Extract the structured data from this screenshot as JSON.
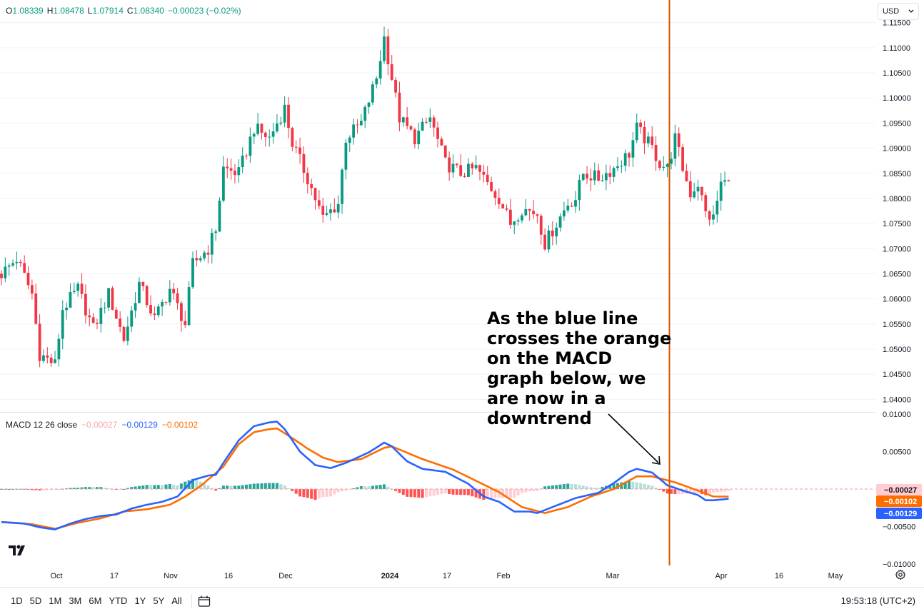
{
  "ohlc": {
    "o_label": "O",
    "o": "1.08339",
    "h_label": "H",
    "h": "1.08478",
    "l_label": "L",
    "l": "1.07914",
    "c_label": "C",
    "c": "1.08340",
    "change": "−0.00023 (−0.02%)"
  },
  "currency": {
    "value": "USD"
  },
  "macd_legend": {
    "name": "MACD 12 26 close",
    "hist": "−0.00027",
    "macd": "−0.00129",
    "signal": "−0.00102"
  },
  "annotation": "As the blue line crosses the orange on the MACD graph below, we are now in a downtrend",
  "toolbar": {
    "timeframes": [
      "1D",
      "5D",
      "1M",
      "3M",
      "6M",
      "YTD",
      "1Y",
      "5Y",
      "All"
    ],
    "clock": "19:53:18 (UTC+2)"
  },
  "colors": {
    "up": "#089981",
    "down": "#f23645",
    "hist_up_strong": "#26a69a",
    "hist_up_weak": "#b2dfdb",
    "hist_down_strong": "#ff5252",
    "hist_down_weak": "#ffcdd2",
    "macd_line": "#2962ff",
    "signal_line": "#ff6d00",
    "vline": "#d35400"
  },
  "icons": [
    "settings-icon",
    "calendar-icon",
    "chevron-down-icon",
    "tradingview-logo"
  ],
  "chart_data": [
    {
      "type": "candlestick",
      "title": "",
      "y_axis_ticks": [
        "1.11500",
        "1.11000",
        "1.10500",
        "1.10000",
        "1.09500",
        "1.09000",
        "1.08500",
        "1.08000",
        "1.07500",
        "1.07000",
        "1.06500",
        "1.06000",
        "1.05500",
        "1.05000",
        "1.04500",
        "1.04000"
      ],
      "x_axis_ticks": [
        "Oct",
        "17",
        "Nov",
        "16",
        "Dec",
        "2024",
        "17",
        "Feb",
        "Mar",
        "Apr",
        "16",
        "May"
      ],
      "ylim": [
        1.0375,
        1.1195
      ],
      "waypoints_close": [
        [
          0,
          1.065
        ],
        [
          4,
          1.068
        ],
        [
          8,
          1.061
        ],
        [
          10,
          1.049
        ],
        [
          14,
          1.047
        ],
        [
          16,
          1.058
        ],
        [
          20,
          1.062
        ],
        [
          24,
          1.054
        ],
        [
          28,
          1.061
        ],
        [
          32,
          1.052
        ],
        [
          36,
          1.063
        ],
        [
          40,
          1.056
        ],
        [
          44,
          1.062
        ],
        [
          48,
          1.055
        ],
        [
          50,
          1.067
        ],
        [
          54,
          1.07
        ],
        [
          56,
          1.074
        ],
        [
          58,
          1.086
        ],
        [
          62,
          1.085
        ],
        [
          66,
          1.094
        ],
        [
          70,
          1.092
        ],
        [
          74,
          1.098
        ],
        [
          76,
          1.091
        ],
        [
          80,
          1.084
        ],
        [
          84,
          1.076
        ],
        [
          88,
          1.079
        ],
        [
          90,
          1.092
        ],
        [
          94,
          1.095
        ],
        [
          98,
          1.104
        ],
        [
          100,
          1.112
        ],
        [
          104,
          1.096
        ],
        [
          108,
          1.092
        ],
        [
          112,
          1.096
        ],
        [
          116,
          1.087
        ],
        [
          120,
          1.085
        ],
        [
          124,
          1.086
        ],
        [
          128,
          1.082
        ],
        [
          130,
          1.08
        ],
        [
          133,
          1.075
        ],
        [
          136,
          1.078
        ],
        [
          140,
          1.077
        ],
        [
          142,
          1.071
        ],
        [
          145,
          1.075
        ],
        [
          148,
          1.079
        ],
        [
          150,
          1.08
        ],
        [
          152,
          1.085
        ],
        [
          156,
          1.084
        ],
        [
          160,
          1.086
        ],
        [
          164,
          1.089
        ],
        [
          166,
          1.094
        ],
        [
          170,
          1.09
        ],
        [
          172,
          1.087
        ],
        [
          174,
          1.086
        ],
        [
          176,
          1.092
        ],
        [
          178,
          1.086
        ],
        [
          180,
          1.081
        ],
        [
          182,
          1.083
        ],
        [
          184,
          1.077
        ],
        [
          186,
          1.076
        ],
        [
          188,
          1.083
        ],
        [
          190,
          1.083
        ]
      ],
      "candle_count": 191
    },
    {
      "type": "line+histogram",
      "title": "MACD 12 26 close",
      "y_axis_ticks": [
        "0.01000",
        "0.00500",
        "−0.00500",
        "−0.01000"
      ],
      "ylim": [
        -0.0102,
        0.0102
      ],
      "macd_waypoints": [
        [
          0,
          -0.0044
        ],
        [
          6,
          -0.0046
        ],
        [
          10,
          -0.0051
        ],
        [
          14,
          -0.0054
        ],
        [
          18,
          -0.0046
        ],
        [
          22,
          -0.004
        ],
        [
          26,
          -0.0036
        ],
        [
          30,
          -0.0034
        ],
        [
          34,
          -0.0026
        ],
        [
          38,
          -0.0021
        ],
        [
          42,
          -0.0017
        ],
        [
          46,
          -0.001
        ],
        [
          50,
          0.0012
        ],
        [
          54,
          0.0018
        ],
        [
          56,
          0.0019
        ],
        [
          58,
          0.0035
        ],
        [
          62,
          0.0065
        ],
        [
          66,
          0.0084
        ],
        [
          70,
          0.0089
        ],
        [
          72,
          0.009
        ],
        [
          74,
          0.008
        ],
        [
          78,
          0.005
        ],
        [
          82,
          0.0032
        ],
        [
          86,
          0.0028
        ],
        [
          90,
          0.0035
        ],
        [
          96,
          0.0049
        ],
        [
          100,
          0.0062
        ],
        [
          102,
          0.0057
        ],
        [
          106,
          0.0037
        ],
        [
          110,
          0.0027
        ],
        [
          116,
          0.0023
        ],
        [
          122,
          0.0007
        ],
        [
          126,
          -0.001
        ],
        [
          130,
          -0.0017
        ],
        [
          134,
          -0.003
        ],
        [
          138,
          -0.003
        ],
        [
          140,
          -0.0032
        ],
        [
          144,
          -0.0024
        ],
        [
          150,
          -0.0012
        ],
        [
          156,
          -0.0005
        ],
        [
          160,
          0.0008
        ],
        [
          164,
          0.0023
        ],
        [
          166,
          0.0027
        ],
        [
          170,
          0.0022
        ],
        [
          174,
          0.0005
        ],
        [
          178,
          -0.0002
        ],
        [
          182,
          -0.0008
        ],
        [
          184,
          -0.0015
        ],
        [
          186,
          -0.0015
        ],
        [
          190,
          -0.0013
        ]
      ],
      "signal_waypoints": [
        [
          0,
          -0.0044
        ],
        [
          8,
          -0.0047
        ],
        [
          14,
          -0.0053
        ],
        [
          20,
          -0.0045
        ],
        [
          26,
          -0.0039
        ],
        [
          32,
          -0.003
        ],
        [
          38,
          -0.0027
        ],
        [
          44,
          -0.0021
        ],
        [
          48,
          -0.001
        ],
        [
          52,
          0.0004
        ],
        [
          58,
          0.003
        ],
        [
          62,
          0.006
        ],
        [
          66,
          0.0076
        ],
        [
          70,
          0.008
        ],
        [
          72,
          0.0081
        ],
        [
          76,
          0.0068
        ],
        [
          80,
          0.0054
        ],
        [
          84,
          0.0042
        ],
        [
          88,
          0.0036
        ],
        [
          94,
          0.004
        ],
        [
          100,
          0.0055
        ],
        [
          102,
          0.0057
        ],
        [
          110,
          0.004
        ],
        [
          118,
          0.0026
        ],
        [
          124,
          0.0011
        ],
        [
          130,
          -0.0004
        ],
        [
          136,
          -0.0024
        ],
        [
          142,
          -0.0032
        ],
        [
          148,
          -0.0024
        ],
        [
          154,
          -0.001
        ],
        [
          160,
          0.0
        ],
        [
          166,
          0.0017
        ],
        [
          170,
          0.0017
        ],
        [
          176,
          0.0009
        ],
        [
          182,
          -0.0002
        ],
        [
          186,
          -0.001
        ],
        [
          190,
          -0.001
        ]
      ],
      "histogram_note": "difference between macd and signal"
    }
  ]
}
